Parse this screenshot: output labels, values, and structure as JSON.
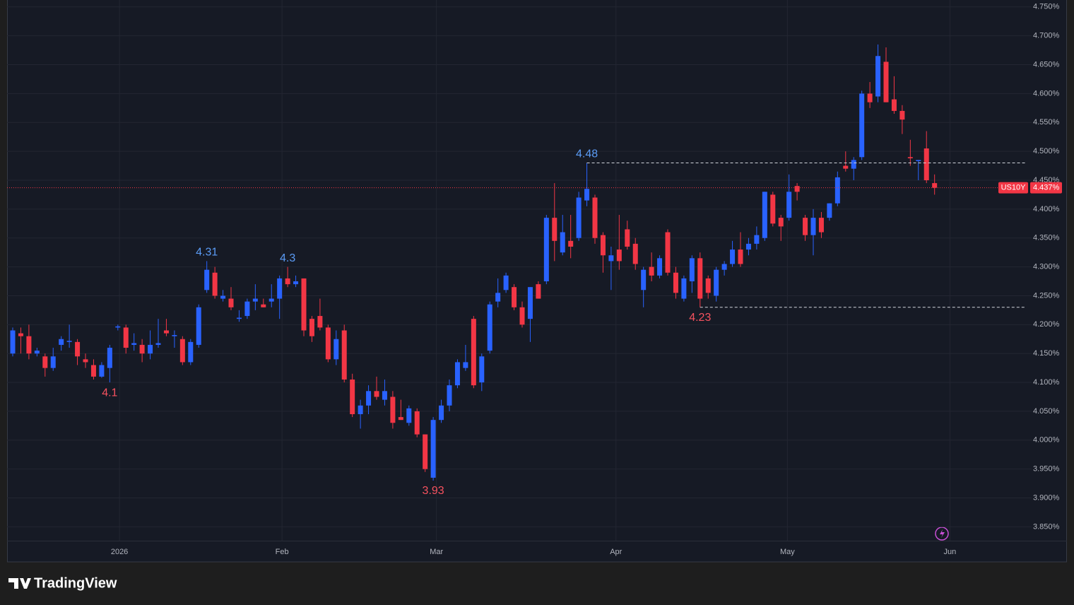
{
  "chart_data": {
    "type": "candlestick",
    "symbol": "US10Y",
    "last_price": {
      "value": 4.437,
      "label": "4.437%"
    },
    "up_color": "#2962ff",
    "down_color": "#f23645",
    "grid": true,
    "xlim": [
      -0.7,
      126.0
    ],
    "xticks": [
      {
        "value": 13.2,
        "label": "2026"
      },
      {
        "value": 33.3,
        "label": "Feb"
      },
      {
        "value": 52.4,
        "label": "Mar"
      },
      {
        "value": 74.6,
        "label": "Apr"
      },
      {
        "value": 95.8,
        "label": "May"
      },
      {
        "value": 115.9,
        "label": "Jun"
      }
    ],
    "ylim": [
      3.826,
      4.762
    ],
    "yticks": [
      {
        "value": 3.85,
        "label": "3.850%"
      },
      {
        "value": 3.9,
        "label": "3.900%"
      },
      {
        "value": 3.95,
        "label": "3.950%"
      },
      {
        "value": 4.0,
        "label": "4.000%"
      },
      {
        "value": 4.05,
        "label": "4.050%"
      },
      {
        "value": 4.1,
        "label": "4.100%"
      },
      {
        "value": 4.15,
        "label": "4.150%"
      },
      {
        "value": 4.2,
        "label": "4.200%"
      },
      {
        "value": 4.25,
        "label": "4.250%"
      },
      {
        "value": 4.3,
        "label": "4.300%"
      },
      {
        "value": 4.35,
        "label": "4.350%"
      },
      {
        "value": 4.4,
        "label": "4.400%"
      },
      {
        "value": 4.45,
        "label": "4.450%"
      },
      {
        "value": 4.5,
        "label": "4.500%"
      },
      {
        "value": 4.55,
        "label": "4.550%"
      },
      {
        "value": 4.6,
        "label": "4.600%"
      },
      {
        "value": 4.65,
        "label": "4.650%"
      },
      {
        "value": 4.7,
        "label": "4.700%"
      },
      {
        "value": 4.75,
        "label": "4.750%"
      }
    ],
    "open": [
      4.15,
      4.185,
      4.18,
      4.15,
      4.145,
      4.125,
      4.165,
      4.17,
      4.17,
      4.14,
      4.13,
      4.11,
      4.125,
      4.195,
      4.195,
      4.165,
      4.165,
      4.15,
      4.165,
      4.19,
      4.18,
      4.175,
      4.135,
      4.165,
      4.26,
      4.29,
      4.245,
      4.245,
      4.21,
      4.215,
      4.24,
      4.235,
      4.24,
      4.245,
      4.28,
      4.27,
      4.28,
      4.21,
      4.215,
      4.195,
      4.14,
      4.19,
      4.105,
      4.045,
      4.06,
      4.085,
      4.07,
      4.075,
      4.04,
      4.03,
      4.05,
      4.01,
      3.935,
      4.035,
      4.06,
      4.095,
      4.125,
      4.21,
      4.1,
      4.155,
      4.24,
      4.26,
      4.265,
      4.23,
      4.21,
      4.27,
      4.275,
      4.385,
      4.325,
      4.345,
      4.35,
      4.415,
      4.42,
      4.355,
      4.31,
      4.33,
      4.365,
      4.34,
      4.26,
      4.3,
      4.285,
      4.36,
      4.29,
      4.245,
      4.275,
      4.315,
      4.28,
      4.25,
      4.295,
      4.305,
      4.33,
      4.33,
      4.34,
      4.35,
      4.425,
      4.385,
      4.385,
      4.44,
      4.385,
      4.355,
      4.385,
      4.385,
      4.41,
      4.475,
      4.47,
      4.49,
      4.6,
      4.595,
      4.655,
      4.59,
      4.57,
      4.49,
      4.483,
      4.505,
      4.445
    ],
    "high": [
      4.195,
      4.195,
      4.2,
      4.16,
      4.15,
      4.16,
      4.18,
      4.2,
      4.175,
      4.15,
      4.14,
      4.135,
      4.165,
      4.2,
      4.2,
      4.185,
      4.175,
      4.19,
      4.21,
      4.21,
      4.19,
      4.18,
      4.175,
      4.235,
      4.31,
      4.3,
      4.26,
      4.265,
      4.225,
      4.245,
      4.27,
      4.245,
      4.27,
      4.285,
      4.3,
      4.285,
      4.28,
      4.215,
      4.245,
      4.2,
      4.19,
      4.2,
      4.115,
      4.07,
      4.095,
      4.11,
      4.105,
      4.085,
      4.07,
      4.06,
      4.055,
      4.01,
      4.04,
      4.07,
      4.105,
      4.14,
      4.165,
      4.215,
      4.15,
      4.24,
      4.28,
      4.29,
      4.27,
      4.24,
      4.265,
      4.275,
      4.39,
      4.445,
      4.39,
      4.39,
      4.43,
      4.48,
      4.425,
      4.36,
      4.335,
      4.39,
      4.38,
      4.35,
      4.3,
      4.325,
      4.32,
      4.365,
      4.3,
      4.285,
      4.32,
      4.325,
      4.285,
      4.3,
      4.31,
      4.345,
      4.36,
      4.35,
      4.37,
      4.43,
      4.43,
      4.39,
      4.46,
      4.445,
      4.39,
      4.4,
      4.395,
      4.41,
      4.465,
      4.5,
      4.49,
      4.605,
      4.62,
      4.685,
      4.68,
      4.63,
      4.58,
      4.52,
      4.485,
      4.535,
      4.46
    ],
    "low": [
      4.145,
      4.15,
      4.14,
      4.145,
      4.11,
      4.12,
      4.155,
      4.16,
      4.13,
      4.125,
      4.105,
      4.108,
      4.1,
      4.19,
      4.15,
      4.155,
      4.135,
      4.14,
      4.16,
      4.18,
      4.16,
      4.13,
      4.13,
      4.16,
      4.255,
      4.245,
      4.24,
      4.225,
      4.205,
      4.21,
      4.225,
      4.23,
      4.23,
      4.21,
      4.265,
      4.265,
      4.18,
      4.17,
      4.19,
      4.135,
      4.13,
      4.1,
      4.04,
      4.02,
      4.045,
      4.07,
      4.06,
      4.02,
      4.035,
      4.025,
      4.005,
      3.945,
      3.93,
      4.03,
      4.05,
      4.09,
      4.12,
      4.09,
      4.085,
      4.15,
      4.23,
      4.255,
      4.225,
      4.195,
      4.17,
      4.245,
      4.27,
      4.31,
      4.32,
      4.315,
      4.345,
      4.405,
      4.34,
      4.29,
      4.26,
      4.295,
      4.33,
      4.295,
      4.23,
      4.275,
      4.28,
      4.285,
      4.245,
      4.24,
      4.255,
      4.23,
      4.245,
      4.24,
      4.285,
      4.3,
      4.3,
      4.32,
      4.33,
      4.345,
      4.37,
      4.345,
      4.38,
      4.415,
      4.345,
      4.32,
      4.35,
      4.38,
      4.405,
      4.465,
      4.45,
      4.485,
      4.575,
      4.585,
      4.585,
      4.565,
      4.53,
      4.475,
      4.45,
      4.445,
      4.425
    ],
    "close": [
      4.19,
      4.18,
      4.15,
      4.155,
      4.125,
      4.145,
      4.175,
      4.172,
      4.145,
      4.135,
      4.11,
      4.13,
      4.16,
      4.197,
      4.16,
      4.168,
      4.15,
      4.165,
      4.168,
      4.185,
      4.182,
      4.135,
      4.17,
      4.23,
      4.295,
      4.25,
      4.25,
      4.23,
      4.212,
      4.24,
      4.245,
      4.23,
      4.245,
      4.28,
      4.27,
      4.275,
      4.19,
      4.18,
      4.195,
      4.14,
      4.175,
      4.105,
      4.045,
      4.06,
      4.085,
      4.075,
      4.085,
      4.03,
      4.035,
      4.055,
      4.01,
      3.95,
      4.035,
      4.06,
      4.095,
      4.135,
      4.135,
      4.095,
      4.145,
      4.235,
      4.255,
      4.285,
      4.23,
      4.2,
      4.265,
      4.245,
      4.385,
      4.345,
      4.36,
      4.335,
      4.42,
      4.435,
      4.35,
      4.32,
      4.32,
      4.31,
      4.335,
      4.305,
      4.295,
      4.285,
      4.315,
      4.29,
      4.255,
      4.28,
      4.315,
      4.245,
      4.255,
      4.295,
      4.305,
      4.33,
      4.305,
      4.34,
      4.355,
      4.43,
      4.375,
      4.37,
      4.43,
      4.43,
      4.355,
      4.385,
      4.36,
      4.41,
      4.455,
      4.47,
      4.485,
      4.6,
      4.585,
      4.665,
      4.585,
      4.57,
      4.555,
      4.488,
      4.485,
      4.45,
      4.437
    ],
    "annotations": [
      {
        "index": 24,
        "value": 4.31,
        "side": "above"
      },
      {
        "index": 34,
        "value": 4.3,
        "side": "above"
      },
      {
        "index": 12,
        "value": 4.1,
        "side": "below"
      },
      {
        "index": 52,
        "value": 3.93,
        "side": "below"
      },
      {
        "index": 71,
        "value": 4.48,
        "side": "above",
        "dashed": true
      },
      {
        "index": 85,
        "value": 4.23,
        "side": "below",
        "dashed": true
      }
    ]
  },
  "footer": {
    "brand": "TradingView"
  }
}
